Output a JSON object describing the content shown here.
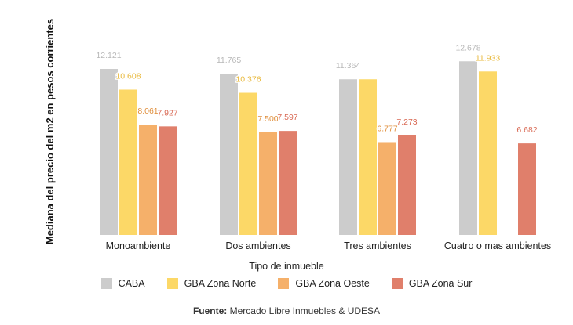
{
  "chart_data": {
    "type": "bar",
    "title": "",
    "xlabel": "Tipo de inmueble",
    "ylabel": "Mediana del precio del m2 en pesos corrientes",
    "categories": [
      "Monoambiente",
      "Dos ambientes",
      "Tres ambientes",
      "Cuatro o mas ambientes"
    ],
    "series": [
      {
        "name": "CABA",
        "color": "#cccccc",
        "values": [
          12121,
          11765,
          11364,
          12678
        ],
        "labels": [
          "12.121",
          "11.765",
          "11.364",
          "12.678"
        ]
      },
      {
        "name": "GBA Zona Norte",
        "color": "#fcd867",
        "values": [
          10608,
          10376,
          11364,
          11933
        ],
        "labels": [
          "10.608",
          "10.376",
          "",
          "11.933"
        ]
      },
      {
        "name": "GBA Zona Oeste",
        "color": "#f5b06a",
        "values": [
          8061,
          7500,
          6777,
          null
        ],
        "labels": [
          "8.061",
          "7.500",
          "6.777",
          ""
        ]
      },
      {
        "name": "GBA Zona Sur",
        "color": "#e07f6b",
        "values": [
          7927,
          7597,
          7273,
          6682
        ],
        "labels": [
          "7.927",
          "7.597",
          "7.273",
          "6.682"
        ]
      }
    ],
    "grid": false,
    "legend_position": "bottom"
  },
  "source": {
    "prefix": "Fuente:",
    "text": "Mercado Libre Inmuebles & UDESA"
  }
}
